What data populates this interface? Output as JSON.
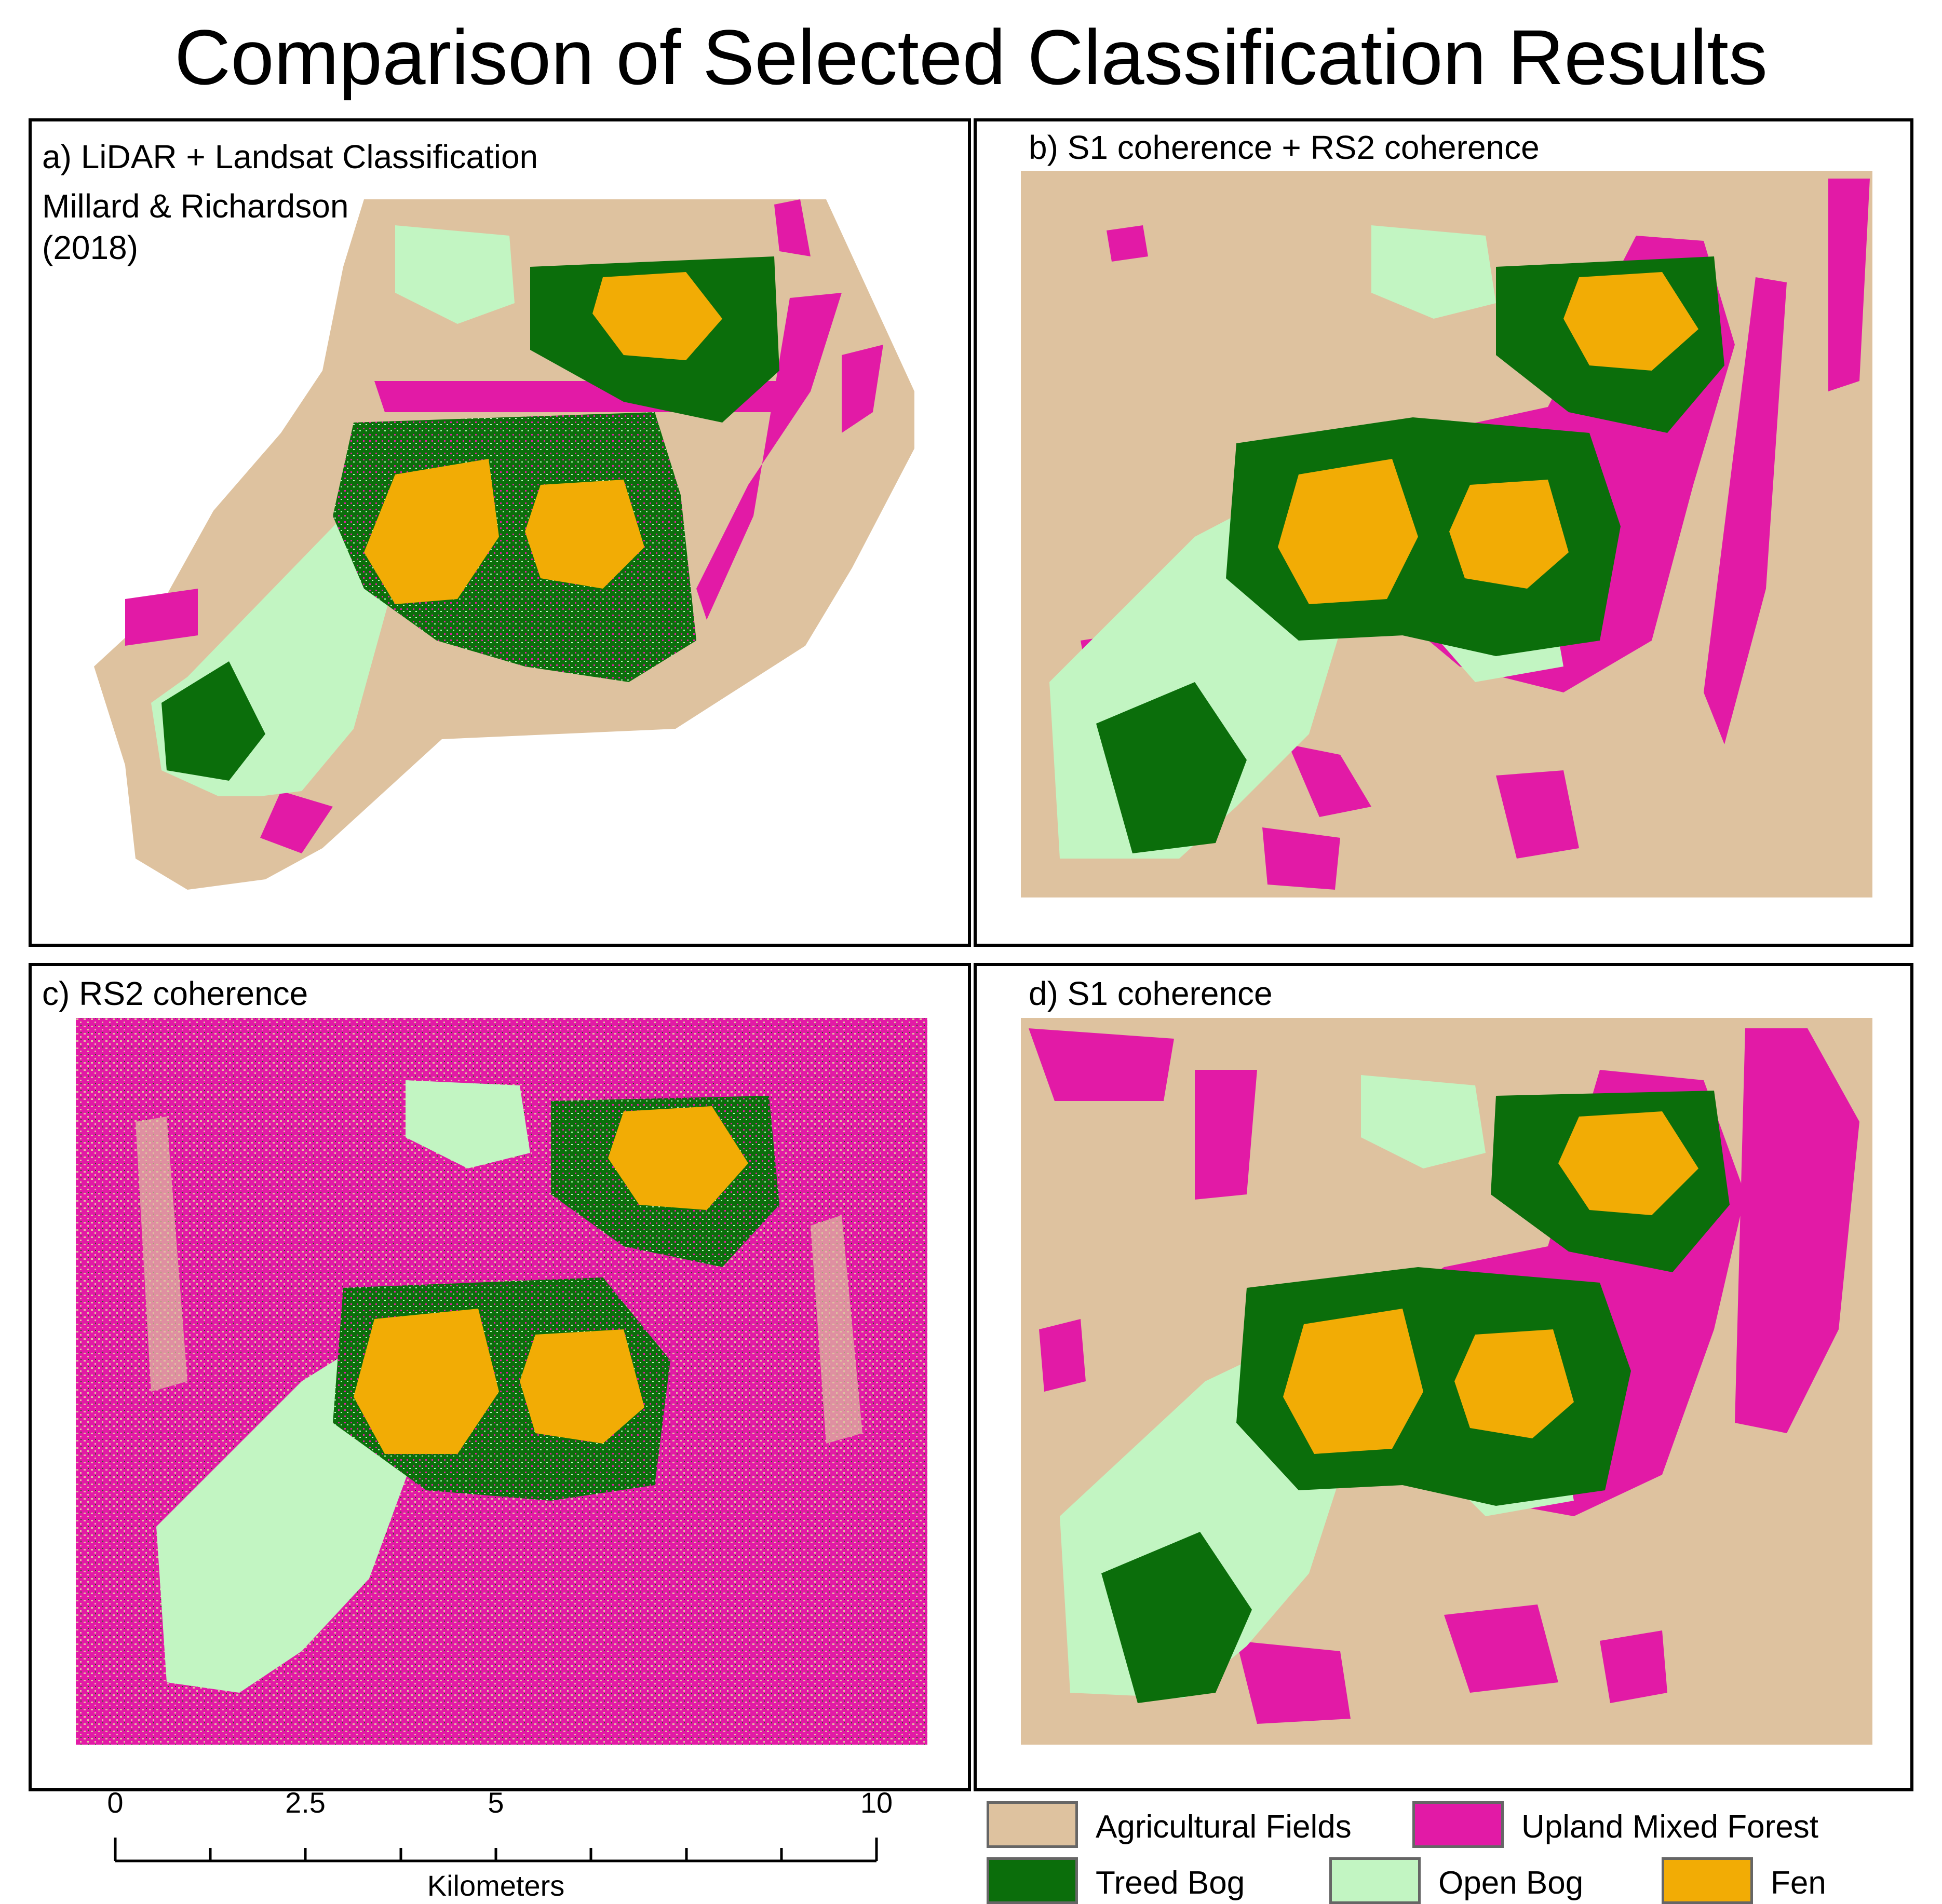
{
  "title": "Comparison of Selected Classification Results",
  "colors": {
    "agricultural_fields": "#DEC29F",
    "upland_mixed_forest": "#E21AA6",
    "treed_bog": "#0B6E0B",
    "open_bog": "#C2F5C2",
    "fen": "#F2AC05"
  },
  "panels": [
    {
      "label_line1": "a) LiDAR + Landsat Classification",
      "label_line2": "Millard & Richardson",
      "label_line3": "(2018)"
    },
    {
      "label_line1": "b) S1 coherence + RS2 coherence"
    },
    {
      "label_line1": "c) RS2 coherence"
    },
    {
      "label_line1": "d) S1 coherence"
    }
  ],
  "scale_bar": {
    "ticks": [
      "0",
      "2.5",
      "5",
      "10"
    ],
    "unit": "Kilometers"
  },
  "legend": [
    {
      "label": "Agricultural Fields",
      "color": "#DEC29F"
    },
    {
      "label": "Upland Mixed Forest",
      "color": "#E21AA6"
    },
    {
      "label": "Treed Bog",
      "color": "#0B6E0B"
    },
    {
      "label": "Open Bog",
      "color": "#C2F5C2"
    },
    {
      "label": "Fen",
      "color": "#F2AC05"
    }
  ]
}
